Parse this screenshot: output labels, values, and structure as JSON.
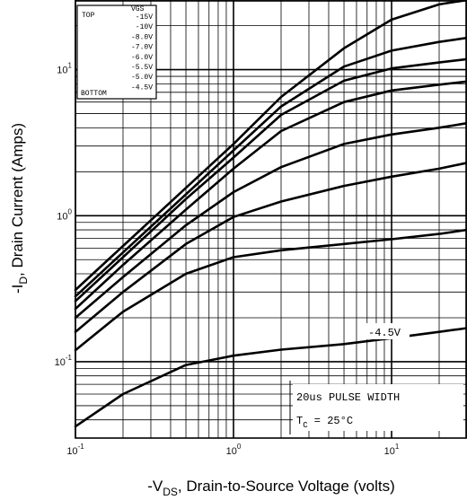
{
  "chart_data": {
    "type": "line",
    "xscale": "log",
    "yscale": "log",
    "xlim": [
      0.1,
      30
    ],
    "ylim": [
      0.03,
      30
    ],
    "grid": true,
    "xlabel_prefix": "-V",
    "xlabel_sub": "DS",
    "xlabel_suffix": ", Drain-to-Source Voltage (volts)",
    "ylabel_prefix": "-I",
    "ylabel_sub": "D",
    "ylabel_suffix": ", Drain Current (Amps)",
    "x_ticks": [
      {
        "value": 0.1,
        "base": "10",
        "exp": "-1"
      },
      {
        "value": 1,
        "base": "10",
        "exp": "0"
      },
      {
        "value": 10,
        "base": "10",
        "exp": "1"
      }
    ],
    "y_ticks": [
      {
        "value": 0.1,
        "base": "10",
        "exp": "-1"
      },
      {
        "value": 1,
        "base": "10",
        "exp": "0"
      },
      {
        "value": 10,
        "base": "10",
        "exp": "1"
      }
    ],
    "legend": {
      "placement": "top-left",
      "header": "VGS",
      "top_label": "TOP",
      "bottom_label": "BOTTOM",
      "entries": [
        "-15V",
        "-10V",
        "-8.0V",
        "-7.0V",
        "-6.0V",
        "-5.5V",
        "-5.0V",
        "-4.5V"
      ]
    },
    "curve_label": "-4.5V",
    "annotation_line1": "20us PULSE WIDTH",
    "annotation_line2_prefix": "T",
    "annotation_line2_sub": "C",
    "annotation_line2_value": " = 25",
    "annotation_line2_unit": "°C",
    "series": [
      {
        "name": "-15V",
        "x": [
          0.1,
          0.2,
          0.5,
          1,
          2,
          5,
          10,
          20,
          30
        ],
        "y": [
          0.31,
          0.62,
          1.55,
          3.1,
          6.5,
          14,
          22,
          28,
          30
        ]
      },
      {
        "name": "-10V",
        "x": [
          0.1,
          0.2,
          0.5,
          1,
          2,
          5,
          10,
          20,
          30
        ],
        "y": [
          0.28,
          0.56,
          1.4,
          2.8,
          5.6,
          10.5,
          13.5,
          15.5,
          16.5
        ]
      },
      {
        "name": "-8.0V",
        "x": [
          0.1,
          0.2,
          0.5,
          1,
          2,
          5,
          10,
          20,
          30
        ],
        "y": [
          0.26,
          0.52,
          1.3,
          2.5,
          4.9,
          8.4,
          10.2,
          11.2,
          11.8
        ]
      },
      {
        "name": "-7.0V",
        "x": [
          0.1,
          0.2,
          0.5,
          1,
          2,
          5,
          10,
          20,
          30
        ],
        "y": [
          0.23,
          0.46,
          1.1,
          2.1,
          3.8,
          6.0,
          7.2,
          7.9,
          8.3
        ]
      },
      {
        "name": "-6.0V",
        "x": [
          0.1,
          0.2,
          0.5,
          1,
          2,
          5,
          10,
          20,
          30
        ],
        "y": [
          0.2,
          0.38,
          0.86,
          1.45,
          2.15,
          3.1,
          3.6,
          4.0,
          4.3
        ]
      },
      {
        "name": "-5.5V",
        "x": [
          0.1,
          0.2,
          0.5,
          1,
          2,
          5,
          10,
          20,
          30
        ],
        "y": [
          0.16,
          0.3,
          0.64,
          0.98,
          1.25,
          1.6,
          1.85,
          2.1,
          2.3
        ]
      },
      {
        "name": "-5.0V",
        "x": [
          0.1,
          0.2,
          0.5,
          1,
          2,
          5,
          10,
          20,
          30
        ],
        "y": [
          0.12,
          0.22,
          0.4,
          0.52,
          0.58,
          0.64,
          0.69,
          0.75,
          0.8
        ]
      },
      {
        "name": "-4.5V",
        "x": [
          0.1,
          0.2,
          0.5,
          1,
          2,
          5,
          10,
          20,
          30
        ],
        "y": [
          0.036,
          0.06,
          0.095,
          0.11,
          0.121,
          0.132,
          0.145,
          0.16,
          0.17
        ]
      }
    ]
  }
}
